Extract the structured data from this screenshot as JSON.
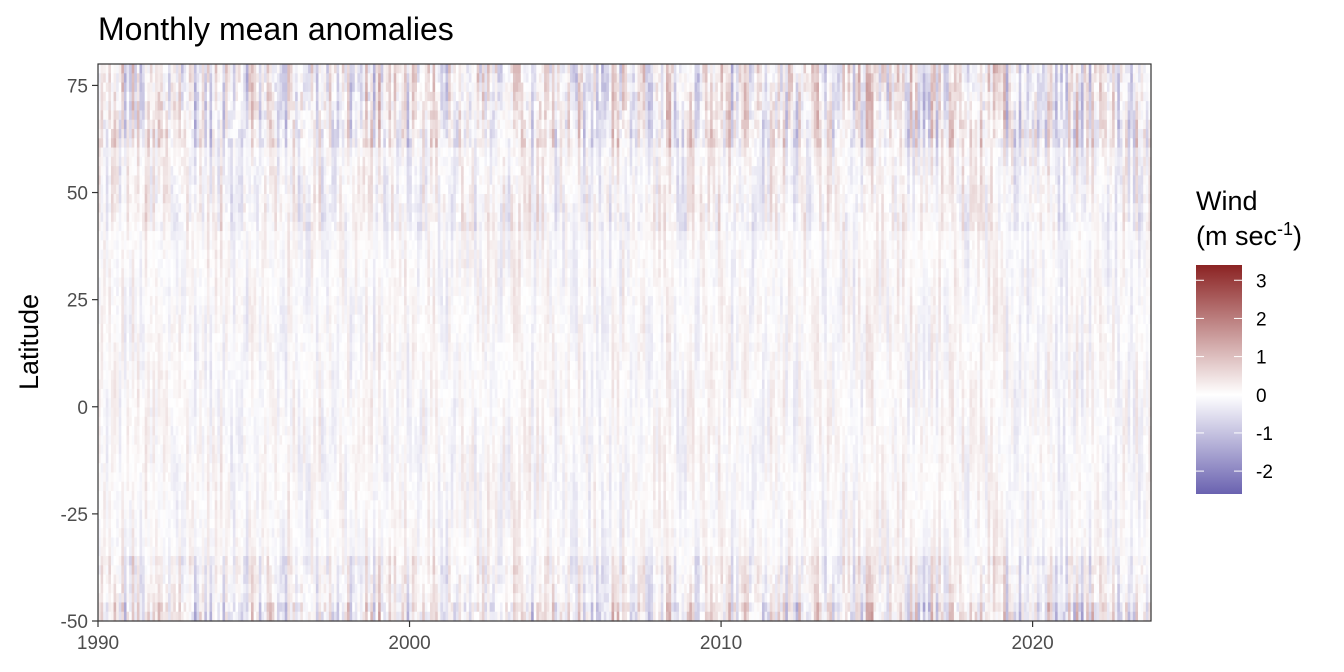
{
  "chart_data": {
    "type": "heatmap",
    "title": "Monthly mean anomalies",
    "xlabel": "",
    "ylabel": "Latitude",
    "x_ticks": [
      "1990",
      "2000",
      "2010",
      "2020"
    ],
    "y_ticks": [
      "75",
      "50",
      "25",
      "0",
      "-25",
      "-50"
    ],
    "xlim": [
      1990,
      2023.8
    ],
    "ylim": [
      -50,
      80
    ],
    "grid": false,
    "colorbar": {
      "title_line1": "Wind",
      "title_line2_prefix": "(m sec",
      "title_superscript": "-1",
      "title_line2_suffix": ")",
      "ticks": [
        "3",
        "2",
        "1",
        "0",
        "-1",
        "-2"
      ],
      "range": [
        -2.6,
        3.4
      ],
      "colors": {
        "low": "#6a62b0",
        "mid": "#ffffff",
        "high": "#8b2323"
      },
      "placement": "right"
    },
    "note": "Per-cell anomaly values are generated procedurally; the image shows a dense month-by-latitude field of small anomalies, stronger at high northern latitudes and south of -35."
  }
}
